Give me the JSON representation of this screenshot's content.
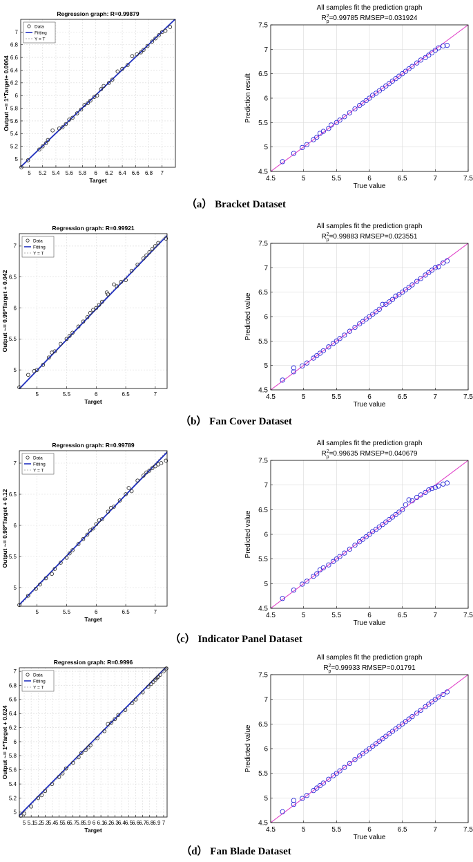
{
  "panels": [
    {
      "caption": "（a） Bracket Dataset",
      "regression": {
        "title": "Regression graph: R=0.99879",
        "xlabel": "Target",
        "ylabel": "Output ~= 1*Target+ 0.0064",
        "xticks": [
          "5",
          "5.2",
          "5.4",
          "5.6",
          "5.8",
          "6",
          "6.2",
          "6.4",
          "6.6",
          "6.8",
          "7"
        ],
        "yticks": [
          "5",
          "5.2",
          "5.4",
          "5.6",
          "5.8",
          "6",
          "6.2",
          "6.4",
          "6.6",
          "6.8",
          "7"
        ],
        "legend": [
          "Data",
          "Fitting",
          "Y = T"
        ]
      },
      "prediction": {
        "title": "All samples fit the prediction graph",
        "metrics": "R",
        "metrics_sup": "2",
        "metrics_sub": "p",
        "metrics_rest": "=0.99785   RMSEP=0.031924",
        "xlabel": "True value",
        "ylabel": "Prediction result",
        "xticks": [
          "4.5",
          "5",
          "5.5",
          "6",
          "6.5",
          "7",
          "7.5"
        ],
        "yticks": [
          "4.5",
          "5",
          "5.5",
          "6",
          "6.5",
          "7",
          "7.5"
        ]
      }
    },
    {
      "caption": "（b） Fan Cover Dataset",
      "regression": {
        "title": "Regression graph: R=0.99921",
        "xlabel": "Target",
        "ylabel": "Output ~= 0.99*Target + 0.042",
        "xticks": [
          "5",
          "5.5",
          "6",
          "6.5",
          "7"
        ],
        "yticks": [
          "5",
          "5.5",
          "6",
          "6.5",
          "7"
        ],
        "legend": [
          "Data",
          "Fitting",
          "Y = T"
        ]
      },
      "prediction": {
        "title": "All samples fit the prediction graph",
        "metrics": "R",
        "metrics_sup": "2",
        "metrics_sub": "p",
        "metrics_rest": "=0.99883   RMSEP=0.023551",
        "xlabel": "True value",
        "ylabel": "Predicted value",
        "xticks": [
          "4.5",
          "5",
          "5.5",
          "6",
          "6.5",
          "7",
          "7.5"
        ],
        "yticks": [
          "4.5",
          "5",
          "5.5",
          "6",
          "6.5",
          "7",
          "7.5"
        ]
      }
    },
    {
      "caption": "（c） Indicator Panel Dataset",
      "regression": {
        "title": "Regression graph: R=0.99789",
        "xlabel": "Target",
        "ylabel": "Output ~= 0.98*Target + 0.12",
        "xticks": [
          "5",
          "5.5",
          "6",
          "6.5",
          "7"
        ],
        "yticks": [
          "5",
          "5.5",
          "6",
          "6.5",
          "7"
        ],
        "legend": [
          "Data",
          "Fitting",
          "Y = T"
        ]
      },
      "prediction": {
        "title": "All samples fit the prediction graph",
        "metrics": "R",
        "metrics_sup": "2",
        "metrics_sub": "p",
        "metrics_rest": "=0.99635   RMSEP=0.040679",
        "xlabel": "True value",
        "ylabel": "Predicted value",
        "xticks": [
          "4.5",
          "5",
          "5.5",
          "6",
          "6.5",
          "7",
          "7.5"
        ],
        "yticks": [
          "4.5",
          "5",
          "5.5",
          "6",
          "6.5",
          "7",
          "7.5"
        ]
      }
    },
    {
      "caption": "（d） Fan Blade Dataset",
      "regression": {
        "title": "Regression graph: R=0.9996",
        "xlabel": "Target",
        "ylabel": "Output ~= 1*Target + 0.024",
        "xticks": [
          "5",
          "5.1",
          "5.2",
          "5.3",
          "5.4",
          "5.5",
          "5.6",
          "5.7",
          "5.8",
          "5.9",
          "6",
          "6.1",
          "6.2",
          "6.3",
          "6.4",
          "6.5",
          "6.6",
          "6.7",
          "6.8",
          "6.9",
          "7"
        ],
        "yticks": [
          "5",
          "5.2",
          "5.4",
          "5.6",
          "5.8",
          "6",
          "6.2",
          "6.4",
          "6.6",
          "6.8",
          "7"
        ],
        "legend": [
          "Data",
          "Fitting",
          "Y = T"
        ]
      },
      "prediction": {
        "title": "All samples fit the prediction graph",
        "metrics": "R",
        "metrics_sup": "2",
        "metrics_sub": "p",
        "metrics_rest": "=0.99933   RMSEP=0.01791",
        "xlabel": "True value",
        "ylabel": "Predicted value",
        "xticks": [
          "4.5",
          "5",
          "5.5",
          "6",
          "6.5",
          "7",
          "7.5"
        ],
        "yticks": [
          "4.5",
          "5",
          "5.5",
          "6",
          "6.5",
          "7",
          "7.5"
        ]
      }
    }
  ],
  "chart_data": [
    {
      "type": "scatter",
      "title": "Regression graph: R=0.99879",
      "xlabel": "Target",
      "ylabel": "Output ~= 1*Target+ 0.0064",
      "xlim": [
        4.87,
        7.2
      ],
      "ylim": [
        4.87,
        7.2
      ],
      "legend": [
        "Data",
        "Fitting",
        "Y = T"
      ],
      "legend_position": "top-left",
      "grid": true,
      "fit_line": {
        "slope": 1.0,
        "intercept": 0.0064
      },
      "x": [
        4.88,
        4.98,
        5.15,
        5.2,
        5.25,
        5.28,
        5.35,
        5.45,
        5.5,
        5.55,
        5.6,
        5.65,
        5.72,
        5.78,
        5.83,
        5.88,
        5.92,
        5.98,
        6.02,
        6.08,
        6.12,
        6.2,
        6.25,
        6.33,
        6.4,
        6.48,
        6.55,
        6.62,
        6.68,
        6.72,
        6.78,
        6.85,
        6.9,
        6.95,
        7.0,
        7.05,
        7.12
      ],
      "y": [
        4.87,
        4.98,
        5.15,
        5.2,
        5.25,
        5.3,
        5.45,
        5.48,
        5.5,
        5.55,
        5.62,
        5.65,
        5.72,
        5.78,
        5.85,
        5.88,
        5.92,
        5.98,
        6.0,
        6.1,
        6.15,
        6.2,
        6.25,
        6.38,
        6.42,
        6.48,
        6.62,
        6.65,
        6.68,
        6.72,
        6.78,
        6.85,
        6.9,
        6.95,
        7.0,
        7.02,
        7.08
      ]
    },
    {
      "type": "scatter",
      "title": "All samples fit the prediction graph",
      "metrics": "R2p=0.99785 RMSEP=0.031924",
      "xlabel": "True value",
      "ylabel": "Prediction result",
      "xlim": [
        4.5,
        7.5
      ],
      "ylim": [
        4.5,
        7.5
      ],
      "grid": true,
      "x": [
        4.68,
        4.85,
        4.98,
        5.05,
        5.15,
        5.2,
        5.25,
        5.3,
        5.38,
        5.42,
        5.5,
        5.55,
        5.62,
        5.7,
        5.78,
        5.85,
        5.9,
        5.95,
        6.0,
        6.05,
        6.1,
        6.15,
        6.2,
        6.25,
        6.3,
        6.35,
        6.4,
        6.45,
        6.5,
        6.55,
        6.6,
        6.65,
        6.72,
        6.78,
        6.85,
        6.9,
        6.95,
        7.0,
        7.05,
        7.12,
        7.18
      ],
      "y": [
        4.7,
        4.87,
        4.99,
        5.05,
        5.15,
        5.2,
        5.28,
        5.32,
        5.38,
        5.45,
        5.5,
        5.55,
        5.62,
        5.7,
        5.78,
        5.85,
        5.9,
        5.95,
        6.0,
        6.06,
        6.1,
        6.15,
        6.2,
        6.25,
        6.3,
        6.35,
        6.4,
        6.45,
        6.5,
        6.55,
        6.6,
        6.65,
        6.72,
        6.78,
        6.83,
        6.88,
        6.93,
        6.98,
        7.03,
        7.07,
        7.08
      ]
    },
    {
      "type": "scatter",
      "title": "Regression graph: R=0.99921",
      "xlabel": "Target",
      "ylabel": "Output ~= 0.99*Target + 0.042",
      "xlim": [
        4.7,
        7.2
      ],
      "ylim": [
        4.7,
        7.2
      ],
      "legend": [
        "Data",
        "Fitting",
        "Y = T"
      ],
      "legend_position": "top-left",
      "grid": true,
      "fit_line": {
        "slope": 0.99,
        "intercept": 0.042
      },
      "x": [
        4.7,
        4.85,
        4.95,
        5.0,
        5.1,
        5.2,
        5.25,
        5.3,
        5.4,
        5.5,
        5.55,
        5.6,
        5.7,
        5.78,
        5.85,
        5.9,
        5.95,
        6.0,
        6.05,
        6.1,
        6.18,
        6.2,
        6.3,
        6.35,
        6.42,
        6.5,
        6.6,
        6.7,
        6.8,
        6.85,
        6.9,
        6.95,
        7.0,
        7.05,
        7.18
      ],
      "y": [
        4.72,
        4.92,
        4.98,
        5.0,
        5.08,
        5.2,
        5.28,
        5.3,
        5.42,
        5.5,
        5.55,
        5.6,
        5.7,
        5.78,
        5.85,
        5.92,
        5.97,
        6.0,
        6.05,
        6.1,
        6.25,
        6.22,
        6.38,
        6.35,
        6.42,
        6.45,
        6.6,
        6.7,
        6.8,
        6.85,
        6.9,
        6.95,
        7.0,
        7.05,
        7.12
      ]
    },
    {
      "type": "scatter",
      "title": "All samples fit the prediction graph",
      "metrics": "R2p=0.99883 RMSEP=0.023551",
      "xlabel": "True value",
      "ylabel": "Predicted value",
      "xlim": [
        4.5,
        7.5
      ],
      "ylim": [
        4.5,
        7.5
      ],
      "grid": true,
      "x": [
        4.68,
        4.85,
        4.85,
        4.98,
        5.05,
        5.15,
        5.2,
        5.25,
        5.3,
        5.38,
        5.45,
        5.5,
        5.55,
        5.62,
        5.7,
        5.78,
        5.85,
        5.9,
        5.95,
        6.0,
        6.05,
        6.1,
        6.15,
        6.2,
        6.25,
        6.3,
        6.35,
        6.4,
        6.45,
        6.5,
        6.55,
        6.6,
        6.65,
        6.72,
        6.78,
        6.85,
        6.9,
        6.95,
        7.0,
        7.05,
        7.12,
        7.18
      ],
      "y": [
        4.7,
        4.87,
        4.95,
        4.99,
        5.05,
        5.15,
        5.2,
        5.25,
        5.3,
        5.38,
        5.45,
        5.5,
        5.55,
        5.62,
        5.7,
        5.78,
        5.85,
        5.9,
        5.95,
        6.0,
        6.05,
        6.1,
        6.15,
        6.25,
        6.25,
        6.3,
        6.35,
        6.42,
        6.45,
        6.5,
        6.55,
        6.6,
        6.65,
        6.72,
        6.78,
        6.85,
        6.9,
        6.95,
        7.0,
        7.02,
        7.1,
        7.14
      ]
    },
    {
      "type": "scatter",
      "title": "Regression graph: R=0.99789",
      "xlabel": "Target",
      "ylabel": "Output ~= 0.98*Target + 0.12",
      "xlim": [
        4.7,
        7.2
      ],
      "ylim": [
        4.7,
        7.2
      ],
      "legend": [
        "Data",
        "Fitting",
        "Y = T"
      ],
      "legend_position": "top-left",
      "grid": true,
      "fit_line": {
        "slope": 0.98,
        "intercept": 0.12
      },
      "x": [
        4.7,
        4.85,
        4.98,
        5.05,
        5.15,
        5.25,
        5.3,
        5.4,
        5.5,
        5.55,
        5.6,
        5.7,
        5.78,
        5.85,
        5.9,
        5.95,
        6.0,
        6.05,
        6.1,
        6.2,
        6.25,
        6.3,
        6.4,
        6.5,
        6.55,
        6.6,
        6.7,
        6.8,
        6.85,
        6.9,
        6.95,
        7.0,
        7.05,
        7.1,
        7.18
      ],
      "y": [
        4.72,
        4.87,
        4.98,
        5.05,
        5.15,
        5.22,
        5.3,
        5.4,
        5.48,
        5.55,
        5.6,
        5.7,
        5.78,
        5.85,
        5.92,
        5.95,
        6.02,
        6.08,
        6.1,
        6.22,
        6.28,
        6.3,
        6.4,
        6.5,
        6.6,
        6.55,
        6.72,
        6.8,
        6.85,
        6.88,
        6.92,
        6.95,
        6.98,
        7.0,
        7.04
      ]
    },
    {
      "type": "scatter",
      "title": "All samples fit the prediction graph",
      "metrics": "R2p=0.99635 RMSEP=0.040679",
      "xlabel": "True value",
      "ylabel": "Predicted value",
      "xlim": [
        4.5,
        7.5
      ],
      "ylim": [
        4.5,
        7.5
      ],
      "grid": true,
      "x": [
        4.68,
        4.85,
        4.98,
        5.05,
        5.15,
        5.2,
        5.25,
        5.3,
        5.38,
        5.45,
        5.5,
        5.55,
        5.62,
        5.7,
        5.78,
        5.85,
        5.9,
        5.95,
        6.0,
        6.05,
        6.1,
        6.15,
        6.2,
        6.25,
        6.3,
        6.35,
        6.4,
        6.45,
        6.5,
        6.55,
        6.6,
        6.65,
        6.72,
        6.78,
        6.85,
        6.9,
        6.95,
        7.0,
        7.05,
        7.12,
        7.18
      ],
      "y": [
        4.7,
        4.87,
        4.99,
        5.05,
        5.15,
        5.2,
        5.28,
        5.32,
        5.38,
        5.45,
        5.5,
        5.55,
        5.62,
        5.7,
        5.78,
        5.85,
        5.9,
        5.95,
        6.0,
        6.06,
        6.1,
        6.15,
        6.2,
        6.25,
        6.3,
        6.35,
        6.4,
        6.45,
        6.5,
        6.6,
        6.7,
        6.68,
        6.75,
        6.8,
        6.85,
        6.9,
        6.93,
        6.95,
        6.98,
        7.02,
        7.04
      ]
    },
    {
      "type": "scatter",
      "title": "Regression graph: R=0.9996",
      "xlabel": "Target",
      "ylabel": "Output ~= 1*Target + 0.024",
      "xlim": [
        4.93,
        7.05
      ],
      "ylim": [
        4.93,
        7.05
      ],
      "legend": [
        "Data",
        "Fitting",
        "Y = T"
      ],
      "legend_position": "top-left",
      "grid": true,
      "fit_line": {
        "slope": 1.0,
        "intercept": 0.024
      },
      "x": [
        4.95,
        5.0,
        5.1,
        5.2,
        5.25,
        5.3,
        5.4,
        5.5,
        5.55,
        5.6,
        5.7,
        5.78,
        5.82,
        5.88,
        5.92,
        5.95,
        6.05,
        6.15,
        6.2,
        6.25,
        6.3,
        6.35,
        6.45,
        6.55,
        6.6,
        6.7,
        6.78,
        6.82,
        6.85,
        6.88,
        6.9,
        6.92,
        6.95,
        7.0,
        7.04
      ],
      "y": [
        4.95,
        4.98,
        5.08,
        5.2,
        5.24,
        5.3,
        5.4,
        5.5,
        5.55,
        5.62,
        5.7,
        5.78,
        5.84,
        5.88,
        5.92,
        5.95,
        6.05,
        6.15,
        6.25,
        6.27,
        6.32,
        6.38,
        6.45,
        6.55,
        6.6,
        6.7,
        6.78,
        6.82,
        6.85,
        6.88,
        6.9,
        6.92,
        6.95,
        7.0,
        7.04
      ]
    },
    {
      "type": "scatter",
      "title": "All samples fit the prediction graph",
      "metrics": "R2p=0.99933 RMSEP=0.01791",
      "xlabel": "True value",
      "ylabel": "Predicted value",
      "xlim": [
        4.5,
        7.5
      ],
      "ylim": [
        4.5,
        7.5
      ],
      "grid": true,
      "x": [
        4.68,
        4.85,
        4.85,
        4.98,
        5.05,
        5.15,
        5.2,
        5.25,
        5.3,
        5.38,
        5.45,
        5.5,
        5.55,
        5.62,
        5.7,
        5.78,
        5.85,
        5.9,
        5.95,
        6.0,
        6.05,
        6.1,
        6.15,
        6.2,
        6.25,
        6.3,
        6.35,
        6.4,
        6.45,
        6.5,
        6.55,
        6.6,
        6.65,
        6.72,
        6.78,
        6.85,
        6.9,
        6.95,
        7.0,
        7.05,
        7.12,
        7.18
      ],
      "y": [
        4.72,
        4.87,
        4.95,
        4.99,
        5.05,
        5.15,
        5.2,
        5.25,
        5.3,
        5.38,
        5.45,
        5.5,
        5.55,
        5.62,
        5.7,
        5.78,
        5.85,
        5.9,
        5.95,
        6.0,
        6.05,
        6.1,
        6.15,
        6.2,
        6.25,
        6.3,
        6.35,
        6.4,
        6.45,
        6.5,
        6.55,
        6.6,
        6.65,
        6.72,
        6.78,
        6.85,
        6.9,
        6.95,
        7.0,
        7.05,
        7.1,
        7.15
      ]
    }
  ],
  "colors": {
    "data_marker_left": "#333333",
    "data_marker_right": "#2b2bd8",
    "fit_line": "#1f2fbf",
    "identity_line": "#e040c8",
    "grid": "#d9d9d9"
  }
}
